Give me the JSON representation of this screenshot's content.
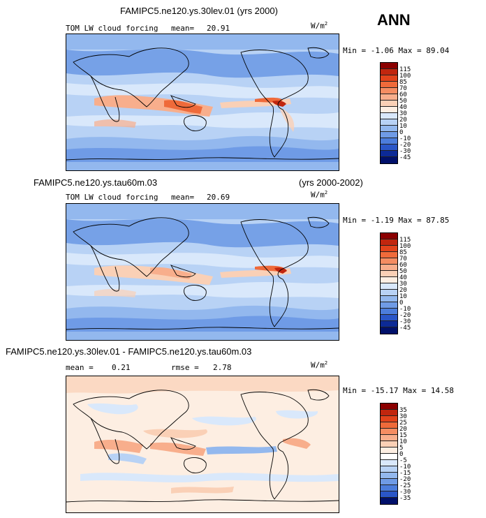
{
  "season": "ANN",
  "panels": [
    {
      "case_title": "FAMIPC5.ne120.ys.30lev.01 (yrs 2000)",
      "years": "",
      "variable": "TOM LW cloud forcing",
      "mean_label": "mean=",
      "mean_value": "20.91",
      "rmse_label": "",
      "rmse_value": "",
      "units": "W/m",
      "units_sup": "2",
      "min_label": "Min =",
      "min_value": "-1.06",
      "max_label": "Max =",
      "max_value": "89.04",
      "colorbar_levels": [
        "115",
        "100",
        "85",
        "70",
        "60",
        "50",
        "40",
        "30",
        "20",
        "10",
        "0",
        "-10",
        "-20",
        "-30",
        "-45"
      ]
    },
    {
      "case_title": "FAMIPC5.ne120.ys.tau60m.03",
      "years": "(yrs 2000-2002)",
      "variable": "TOM LW cloud forcing",
      "mean_label": "mean=",
      "mean_value": "20.69",
      "rmse_label": "",
      "rmse_value": "",
      "units": "W/m",
      "units_sup": "2",
      "min_label": "Min =",
      "min_value": "-1.19",
      "max_label": "Max =",
      "max_value": "87.85",
      "colorbar_levels": [
        "115",
        "100",
        "85",
        "70",
        "60",
        "50",
        "40",
        "30",
        "20",
        "10",
        "0",
        "-10",
        "-20",
        "-30",
        "-45"
      ]
    },
    {
      "case_title": "FAMIPC5.ne120.ys.30lev.01 - FAMIPC5.ne120.ys.tau60m.03",
      "years": "",
      "variable": "",
      "mean_label": "mean =",
      "mean_value": "0.21",
      "rmse_label": "rmse =",
      "rmse_value": "2.78",
      "units": "W/m",
      "units_sup": "2",
      "min_label": "Min =",
      "min_value": "-15.17",
      "max_label": "Max =",
      "max_value": "14.58",
      "colorbar_levels": [
        "35",
        "30",
        "25",
        "20",
        "15",
        "10",
        "5",
        "0",
        "-5",
        "-10",
        "-15",
        "-20",
        "-25",
        "-30",
        "-35"
      ]
    }
  ],
  "colors": {
    "abs_scale": [
      "#8b0000",
      "#c1260e",
      "#e2431b",
      "#ef6a3a",
      "#f58d62",
      "#f8ae8c",
      "#fad0b6",
      "#fdeee2",
      "#d9e8fb",
      "#b8d2f5",
      "#93b8ee",
      "#6f9be6",
      "#4c7ddc",
      "#2a56c8",
      "#0c2a96",
      "#00106a"
    ],
    "diff_scale": [
      "#8b0000",
      "#c1260e",
      "#e2431b",
      "#ef6a3a",
      "#f58d62",
      "#f8ae8c",
      "#fad0b6",
      "#fdeee2",
      "#ffffff",
      "#d9e8fb",
      "#b8d2f5",
      "#93b8ee",
      "#6f9be6",
      "#4c7ddc",
      "#2a56c8",
      "#00106a"
    ]
  }
}
